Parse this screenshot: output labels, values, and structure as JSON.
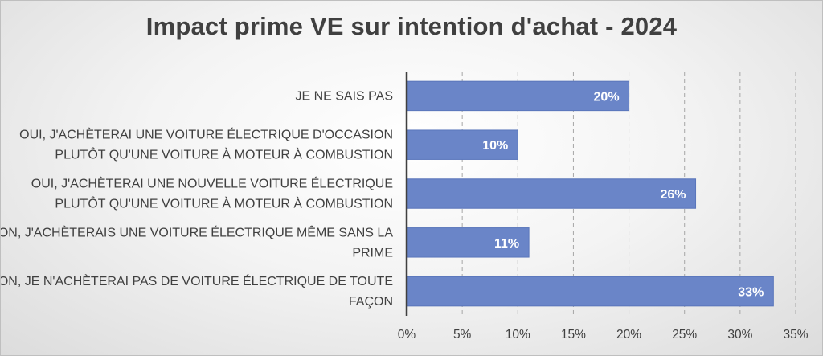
{
  "chart_data": {
    "type": "bar",
    "orientation": "horizontal",
    "title": "Impact prime VE sur intention d'achat - 2024",
    "xlabel": "",
    "ylabel": "",
    "categories": [
      "JE NE SAIS PAS",
      "OUI, J'ACHÈTERAI UNE VOITURE ÉLECTRIQUE D'OCCASION PLUTÔT QU'UNE VOITURE À MOTEUR À COMBUSTION",
      "OUI, J'ACHÈTERAI UNE NOUVELLE VOITURE ÉLECTRIQUE PLUTÔT QU'UNE VOITURE À MOTEUR À COMBUSTION",
      "NON, J'ACHÈTERAIS UNE VOITURE ÉLECTRIQUE MÊME SANS LA PRIME",
      "NON, JE N'ACHÈTERAI PAS DE VOITURE ÉLECTRIQUE DE TOUTE FAÇON"
    ],
    "category_lines": [
      [
        "JE NE SAIS PAS"
      ],
      [
        "OUI, J'ACHÈTERAI UNE VOITURE ÉLECTRIQUE D'OCCASION",
        "PLUTÔT QU'UNE VOITURE À MOTEUR À COMBUSTION"
      ],
      [
        "OUI, J'ACHÈTERAI UNE NOUVELLE VOITURE ÉLECTRIQUE",
        "PLUTÔT QU'UNE VOITURE À MOTEUR À COMBUSTION"
      ],
      [
        "NON, J'ACHÈTERAIS UNE VOITURE ÉLECTRIQUE MÊME SANS LA",
        "PRIME"
      ],
      [
        "NON, JE N'ACHÈTERAI PAS DE VOITURE ÉLECTRIQUE DE TOUTE",
        "FAÇON"
      ]
    ],
    "values": [
      20,
      10,
      26,
      11,
      33
    ],
    "data_labels": [
      "20%",
      "10%",
      "26%",
      "11%",
      "33%"
    ],
    "xlim": [
      0,
      35
    ],
    "xticks": [
      0,
      5,
      10,
      15,
      20,
      25,
      30,
      35
    ],
    "xtick_labels": [
      "0%",
      "5%",
      "10%",
      "15%",
      "20%",
      "25%",
      "30%",
      "35%"
    ],
    "grid": "vertical-dashed",
    "legend": "none",
    "colors": {
      "bar": "#6a85c8",
      "bar_edge": "#5a76bb",
      "grid": "#a6a6a6",
      "axis": "#404040",
      "text": "#404040"
    }
  }
}
